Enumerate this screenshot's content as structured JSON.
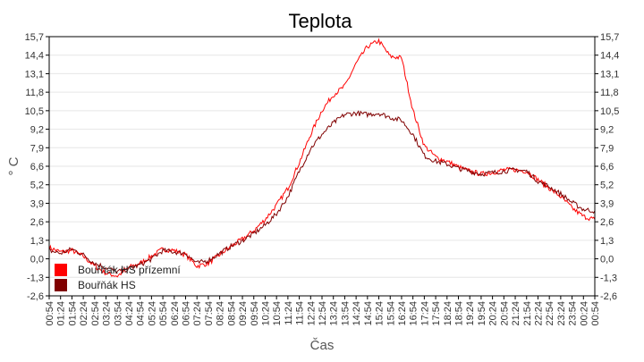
{
  "chart_data": {
    "type": "line",
    "title": "Teplota",
    "xlabel": "Čas",
    "ylabel": "° C",
    "ylim": [
      -2.6,
      15.7
    ],
    "yticks": [
      "15,7",
      "14,4",
      "13,1",
      "11,8",
      "10,5",
      "9,2",
      "7,9",
      "6,6",
      "5,2",
      "3,9",
      "2,6",
      "1,3",
      "0,0",
      "-1,3",
      "-2,6"
    ],
    "grid": true,
    "legend_position": "bottom-left",
    "x": [
      "00:54",
      "01:24",
      "01:54",
      "02:24",
      "02:54",
      "03:24",
      "03:54",
      "04:24",
      "04:54",
      "05:24",
      "05:54",
      "06:24",
      "06:54",
      "07:24",
      "07:54",
      "08:24",
      "08:54",
      "09:24",
      "09:54",
      "10:24",
      "10:54",
      "11:24",
      "11:54",
      "12:24",
      "12:54",
      "13:24",
      "13:54",
      "14:24",
      "14:54",
      "15:24",
      "15:54",
      "16:24",
      "16:54",
      "17:24",
      "17:54",
      "18:24",
      "18:54",
      "19:24",
      "19:54",
      "20:24",
      "20:54",
      "21:24",
      "21:54",
      "22:24",
      "22:54",
      "23:24",
      "23:54",
      "00:24",
      "00:54"
    ],
    "series": [
      {
        "name": "Bouřňák HS přízemní",
        "color": "#ff0000",
        "values": [
          0.8,
          0.5,
          0.6,
          0.2,
          -0.5,
          -1.0,
          -1.2,
          -0.6,
          -0.3,
          0.2,
          0.7,
          0.6,
          0.3,
          -0.5,
          -0.3,
          0.3,
          0.9,
          1.4,
          2.0,
          2.8,
          3.8,
          5.0,
          6.8,
          8.8,
          10.5,
          11.6,
          12.2,
          13.8,
          15.0,
          15.4,
          14.3,
          14.2,
          10.5,
          8.0,
          7.2,
          6.9,
          6.5,
          6.2,
          6.0,
          6.1,
          6.3,
          6.3,
          6.2,
          5.6,
          5.0,
          4.4,
          3.6,
          3.0,
          2.8
        ]
      },
      {
        "name": "Bouřňák HS",
        "color": "#800000",
        "values": [
          0.6,
          0.4,
          0.7,
          0.3,
          -0.3,
          -0.6,
          -0.9,
          -0.7,
          -0.4,
          0.0,
          0.6,
          0.5,
          0.4,
          -0.3,
          -0.1,
          0.4,
          0.9,
          1.3,
          1.8,
          2.4,
          3.2,
          4.4,
          6.2,
          7.8,
          8.8,
          9.6,
          10.2,
          10.3,
          10.2,
          10.3,
          10.0,
          9.8,
          8.8,
          7.3,
          6.9,
          6.7,
          6.4,
          6.2,
          6.0,
          6.1,
          6.2,
          6.3,
          6.2,
          5.5,
          5.1,
          4.6,
          4.0,
          3.5,
          3.4
        ]
      }
    ]
  }
}
